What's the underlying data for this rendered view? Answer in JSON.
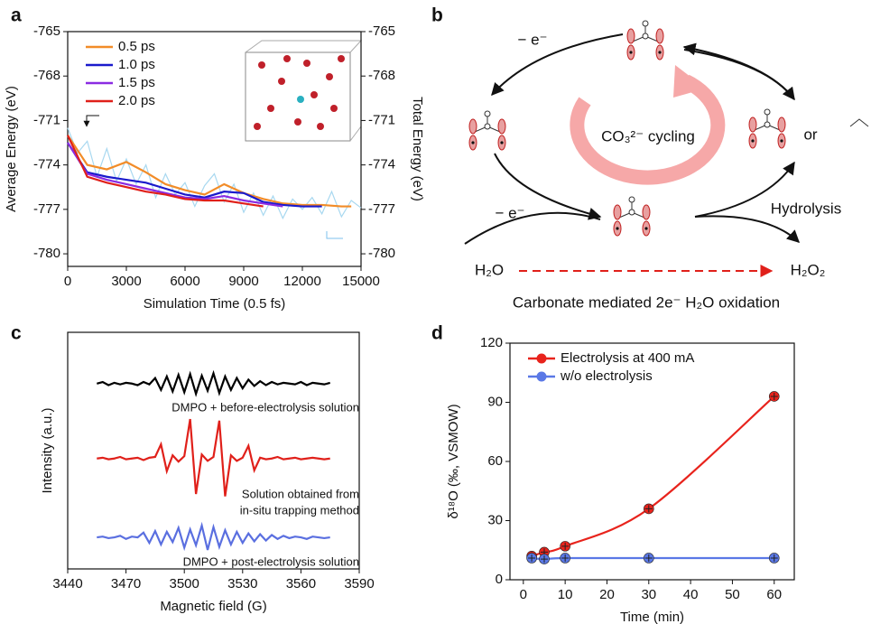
{
  "chart_data": [
    {
      "type": "line",
      "label": "a",
      "xlabel": "Simulation Time (0.5 fs)",
      "ylabel": "Average Energy (eV)",
      "y2label": "Total Energy (eV)",
      "xlim": [
        0,
        15000
      ],
      "xticks": [
        0,
        3000,
        6000,
        9000,
        12000,
        15000
      ],
      "ylim": [
        -780.85,
        -765
      ],
      "yticks": [
        -765,
        -768,
        -771,
        -774,
        -777,
        -780
      ],
      "y2lim": [
        -780.85,
        -765
      ],
      "y2ticks": [
        -765,
        -768,
        -771,
        -774,
        -777,
        -780
      ],
      "series": [
        {
          "color": "#a8d8f0",
          "axis": "y2",
          "x": [
            0,
            500,
            1000,
            1500,
            2000,
            2500,
            3000,
            3500,
            4000,
            4500,
            5000,
            5500,
            6000,
            6500,
            7000,
            7500,
            8000,
            8500,
            9000,
            9500,
            10000,
            10500,
            11000,
            11500,
            12000,
            12500,
            13000,
            13500,
            14000,
            14500,
            15000
          ],
          "values": [
            -771.5,
            -773.2,
            -772.4,
            -774.8,
            -772.9,
            -775.1,
            -773.6,
            -775.3,
            -774.0,
            -776.2,
            -774.6,
            -776.0,
            -775.2,
            -776.8,
            -775.4,
            -774.6,
            -776.5,
            -775.3,
            -777.2,
            -775.9,
            -777.4,
            -776.1,
            -777.6,
            -776.3,
            -777.0,
            -776.2,
            -777.3,
            -775.8,
            -777.5,
            -776.4,
            -776.9
          ]
        },
        {
          "name": "0.5 ps",
          "color": "#f28c28",
          "x": [
            0,
            1000,
            2000,
            3000,
            4000,
            5000,
            6000,
            7000,
            8000,
            9000,
            10000,
            11000,
            12000,
            13000,
            14000,
            14500
          ],
          "values": [
            -772,
            -774,
            -774.3,
            -773.8,
            -774.5,
            -775.3,
            -775.7,
            -776,
            -775.3,
            -775.9,
            -776.3,
            -776.6,
            -776.7,
            -776.7,
            -776.8,
            -776.8
          ]
        },
        {
          "name": "1.0 ps",
          "color": "#1a1acc",
          "x": [
            0,
            1000,
            2000,
            3000,
            4000,
            5000,
            6000,
            7000,
            8000,
            9000,
            10000,
            11000,
            12000,
            13000
          ],
          "values": [
            -772.5,
            -774.5,
            -774.8,
            -775,
            -775.2,
            -775.6,
            -776,
            -776.2,
            -775.8,
            -775.9,
            -776.5,
            -776.7,
            -776.8,
            -776.8
          ]
        },
        {
          "name": "1.5 ps",
          "color": "#8a2be2",
          "x": [
            0,
            1000,
            2000,
            3000,
            4000,
            5000,
            6000,
            7000,
            8000,
            9000,
            10000,
            11000
          ],
          "values": [
            -772.5,
            -774.6,
            -775,
            -775.3,
            -775.6,
            -775.9,
            -776.2,
            -776.3,
            -776.1,
            -776.4,
            -776.6,
            -776.8
          ]
        },
        {
          "name": "2.0 ps",
          "color": "#e0201a",
          "x": [
            0,
            1000,
            2000,
            3000,
            4000,
            5000,
            6000,
            7000,
            8000,
            9000,
            10000
          ],
          "values": [
            -772,
            -774.8,
            -775.2,
            -775.5,
            -775.8,
            -776,
            -776.3,
            -776.4,
            -776.4,
            -776.6,
            -776.8
          ]
        }
      ]
    },
    {
      "type": "line",
      "label": "c",
      "xlabel": "Magnetic field (G)",
      "ylabel": "Intensity (a.u.)",
      "xlim": [
        3440,
        3590
      ],
      "xticks": [
        3440,
        3470,
        3500,
        3530,
        3560,
        3590
      ],
      "ylim": [
        0,
        3
      ],
      "x": [
        3455,
        3458,
        3461,
        3464,
        3467,
        3470,
        3473,
        3476,
        3479,
        3482,
        3485,
        3488,
        3491,
        3494,
        3497,
        3500,
        3503,
        3506,
        3509,
        3512,
        3515,
        3518,
        3521,
        3524,
        3527,
        3530,
        3533,
        3536,
        3539,
        3542,
        3545,
        3548,
        3551,
        3554,
        3557,
        3560,
        3563,
        3566,
        3569,
        3572,
        3575
      ],
      "series": [
        {
          "color": "#000000",
          "values": [
            2.35,
            2.37,
            2.33,
            2.36,
            2.34,
            2.36,
            2.35,
            2.33,
            2.37,
            2.34,
            2.42,
            2.27,
            2.44,
            2.25,
            2.46,
            2.24,
            2.47,
            2.22,
            2.45,
            2.26,
            2.48,
            2.23,
            2.44,
            2.27,
            2.42,
            2.29,
            2.4,
            2.32,
            2.38,
            2.33,
            2.37,
            2.34,
            2.36,
            2.35,
            2.34,
            2.37,
            2.33,
            2.36,
            2.35,
            2.34,
            2.36
          ]
        },
        {
          "color": "#e0201a",
          "values": [
            1.4,
            1.41,
            1.39,
            1.4,
            1.42,
            1.39,
            1.4,
            1.41,
            1.38,
            1.41,
            1.42,
            1.58,
            1.24,
            1.44,
            1.36,
            1.43,
            1.9,
            0.95,
            1.45,
            1.37,
            1.42,
            1.88,
            0.92,
            1.44,
            1.37,
            1.41,
            1.56,
            1.25,
            1.41,
            1.39,
            1.4,
            1.42,
            1.39,
            1.4,
            1.41,
            1.39,
            1.4,
            1.41,
            1.4,
            1.39,
            1.4
          ]
        },
        {
          "color": "#5a6fe0",
          "values": [
            0.4,
            0.41,
            0.39,
            0.4,
            0.42,
            0.38,
            0.41,
            0.4,
            0.46,
            0.33,
            0.48,
            0.31,
            0.47,
            0.34,
            0.52,
            0.27,
            0.5,
            0.3,
            0.55,
            0.24,
            0.53,
            0.28,
            0.49,
            0.31,
            0.47,
            0.33,
            0.45,
            0.35,
            0.44,
            0.36,
            0.43,
            0.38,
            0.42,
            0.39,
            0.41,
            0.4,
            0.38,
            0.41,
            0.4,
            0.39,
            0.4
          ]
        }
      ],
      "annotations": [
        {
          "text": "DMPO + before-electrolysis solution",
          "color": "#000000"
        },
        {
          "text": "Solution obtained from",
          "color": "#e0201a"
        },
        {
          "text": "in-situ trapping method",
          "color": "#e0201a"
        },
        {
          "text": "DMPO + post-electrolysis solution",
          "color": "#5a6fe0"
        }
      ]
    },
    {
      "type": "scatter",
      "label": "d",
      "xlabel": "Time (min)",
      "ylabel": "δ¹⁸O (‰, VSMOW)",
      "connect": true,
      "xlim": [
        -3.2,
        64.8
      ],
      "xticks": [
        0,
        10,
        20,
        30,
        40,
        50,
        60
      ],
      "ylim": [
        0,
        120
      ],
      "yticks": [
        0,
        30,
        60,
        90,
        120
      ],
      "series": [
        {
          "name": "Electrolysis at 400 mA",
          "color": "#e8231c",
          "x": [
            2,
            5,
            10,
            30,
            60
          ],
          "values": [
            12,
            14,
            17,
            36,
            93
          ]
        },
        {
          "name": "w/o electrolysis",
          "color": "#5a78e6",
          "x": [
            2,
            5,
            10,
            30,
            60
          ],
          "values": [
            11,
            10.5,
            11,
            11,
            11
          ]
        }
      ]
    }
  ],
  "diagram": {
    "label": "b",
    "electron_top": "− e⁻",
    "electron_bottom": "− e⁻",
    "cycle": "CO₃²⁻ cycling",
    "or": "or",
    "hydrolysis": "Hydrolysis",
    "reactant": "H₂O",
    "product": "H₂O₂",
    "caption": "Carbonate mediated 2e⁻ H₂O oxidation"
  }
}
